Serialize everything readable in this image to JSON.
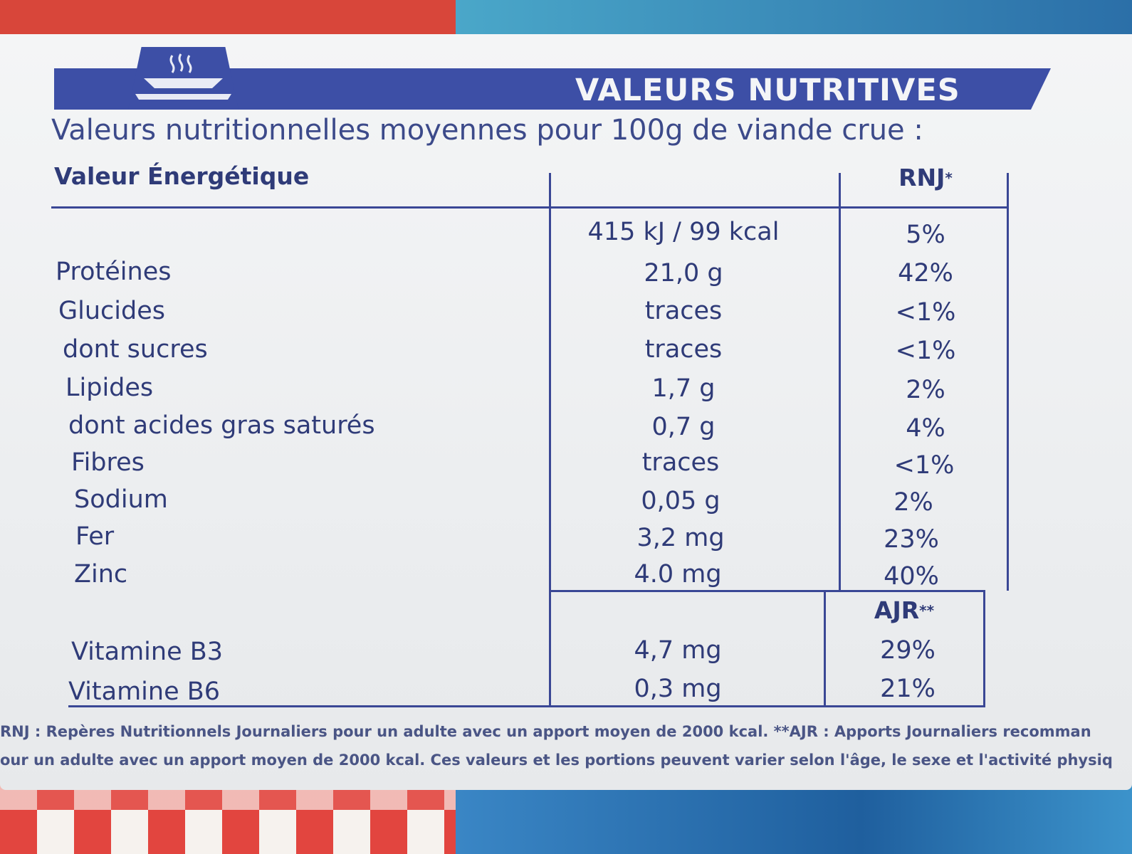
{
  "header": {
    "band_title": "VALEURS NUTRITIVES",
    "subtitle": "Valeurs nutritionnelles moyennes pour 100g de viande crue :",
    "icon": "steaming-dish-icon"
  },
  "table": {
    "col_label_header": "Valeur Énergétique",
    "col_pct_header": "RNJ",
    "col_pct_header_sup": "*",
    "energy": {
      "value": "415 kJ / 99 kcal",
      "pct": "5%"
    },
    "rows": [
      {
        "label": "Protéines",
        "value": "21,0 g",
        "pct": "42%"
      },
      {
        "label": "Glucides",
        "value": "traces",
        "pct": "<1%"
      },
      {
        "label": "dont sucres",
        "value": "traces",
        "pct": "<1%"
      },
      {
        "label": "Lipides",
        "value": "1,7 g",
        "pct": "2%"
      },
      {
        "label": "dont acides gras saturés",
        "value": "0,7 g",
        "pct": "4%"
      },
      {
        "label": "Fibres",
        "value": "traces",
        "pct": "<1%"
      },
      {
        "label": "Sodium",
        "value": "0,05 g",
        "pct": "2%"
      },
      {
        "label": "Fer",
        "value": "3,2 mg",
        "pct": "23%"
      },
      {
        "label": "Zinc",
        "value": "4.0 mg",
        "pct": "40%"
      }
    ],
    "ajr_header": "AJR",
    "ajr_header_sup": "**",
    "vitamins": [
      {
        "label": "Vitamine B3",
        "value": "4,7 mg",
        "pct": "29%"
      },
      {
        "label": "Vitamine B6",
        "value": "0,3 mg",
        "pct": "21%"
      }
    ]
  },
  "footnotes": {
    "line1": "RNJ : Repères Nutritionnels Journaliers pour un adulte avec un apport moyen de 2000 kcal. **AJR : Apports Journaliers recomman",
    "line2": "our un adulte avec un apport moyen de 2000 kcal. Ces valeurs et les portions peuvent varier selon l'âge, le sexe et l'activité physiq"
  },
  "colors": {
    "brand_blue": "#3d4fa6",
    "text_blue": "#2f3b78",
    "label_bg": "#eef0f2"
  }
}
